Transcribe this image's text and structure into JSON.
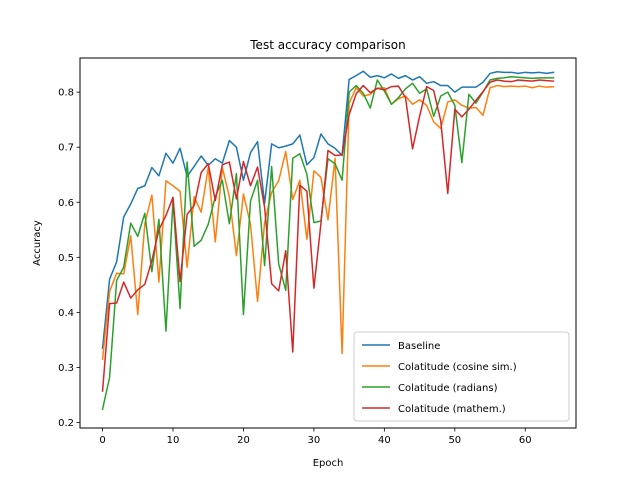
{
  "chart_data": {
    "type": "line",
    "title": "Test accuracy comparison",
    "xlabel": "Epoch",
    "ylabel": "Accuracy",
    "xlim": [
      -3.2,
      67.2
    ],
    "ylim": [
      0.19,
      0.862
    ],
    "xticks": [
      0,
      10,
      20,
      30,
      40,
      50,
      60
    ],
    "yticks": [
      0.2,
      0.3,
      0.4,
      0.5,
      0.6,
      0.7,
      0.8
    ],
    "ytick_labels": [
      "0.2",
      "0.3",
      "0.4",
      "0.5",
      "0.6",
      "0.7",
      "0.8"
    ],
    "grid": false,
    "legend_position": "lower-right",
    "x": [
      0,
      1,
      2,
      3,
      4,
      5,
      6,
      7,
      8,
      9,
      10,
      11,
      12,
      13,
      14,
      15,
      16,
      17,
      18,
      19,
      20,
      21,
      22,
      23,
      24,
      25,
      26,
      27,
      28,
      29,
      30,
      31,
      32,
      33,
      34,
      35,
      36,
      37,
      38,
      39,
      40,
      41,
      42,
      43,
      44,
      45,
      46,
      47,
      48,
      49,
      50,
      51,
      52,
      53,
      54,
      55,
      56,
      57,
      58,
      59,
      60,
      61,
      62,
      63,
      64
    ],
    "series": [
      {
        "name": "Baseline",
        "color": "#1f77b4",
        "values": [
          0.335,
          0.46,
          0.492,
          0.573,
          0.597,
          0.625,
          0.63,
          0.663,
          0.648,
          0.689,
          0.671,
          0.698,
          0.647,
          0.665,
          0.684,
          0.667,
          0.679,
          0.671,
          0.712,
          0.7,
          0.64,
          0.69,
          0.71,
          0.598,
          0.706,
          0.699,
          0.702,
          0.706,
          0.722,
          0.668,
          0.681,
          0.724,
          0.706,
          0.698,
          0.685,
          0.823,
          0.83,
          0.838,
          0.827,
          0.83,
          0.826,
          0.833,
          0.825,
          0.83,
          0.822,
          0.828,
          0.816,
          0.819,
          0.812,
          0.812,
          0.8,
          0.809,
          0.809,
          0.809,
          0.818,
          0.834,
          0.837,
          0.836,
          0.836,
          0.834,
          0.836,
          0.835,
          0.836,
          0.834,
          0.836
        ]
      },
      {
        "name": "Colatitude (cosine sim.)",
        "color": "#ff7f0e",
        "values": [
          0.315,
          0.438,
          0.471,
          0.47,
          0.539,
          0.396,
          0.561,
          0.613,
          0.455,
          0.639,
          0.63,
          0.62,
          0.482,
          0.61,
          0.582,
          0.663,
          0.528,
          0.663,
          0.61,
          0.503,
          0.615,
          0.56,
          0.42,
          0.563,
          0.618,
          0.639,
          0.692,
          0.605,
          0.64,
          0.533,
          0.657,
          0.645,
          0.568,
          0.68,
          0.325,
          0.78,
          0.808,
          0.793,
          0.796,
          0.807,
          0.808,
          0.778,
          0.788,
          0.793,
          0.778,
          0.786,
          0.776,
          0.746,
          0.734,
          0.782,
          0.786,
          0.776,
          0.771,
          0.772,
          0.758,
          0.808,
          0.812,
          0.81,
          0.811,
          0.81,
          0.811,
          0.808,
          0.811,
          0.809,
          0.81
        ]
      },
      {
        "name": "Colatitude (radians)",
        "color": "#2ca02c",
        "values": [
          0.224,
          0.282,
          0.458,
          0.482,
          0.562,
          0.538,
          0.58,
          0.474,
          0.569,
          0.366,
          0.603,
          0.407,
          0.673,
          0.52,
          0.531,
          0.56,
          0.61,
          0.64,
          0.561,
          0.652,
          0.396,
          0.602,
          0.64,
          0.485,
          0.665,
          0.488,
          0.44,
          0.68,
          0.688,
          0.651,
          0.563,
          0.566,
          0.679,
          0.67,
          0.64,
          0.8,
          0.812,
          0.798,
          0.771,
          0.822,
          0.802,
          0.778,
          0.79,
          0.806,
          0.816,
          0.798,
          0.806,
          0.756,
          0.793,
          0.8,
          0.776,
          0.672,
          0.796,
          0.78,
          0.8,
          0.822,
          0.825,
          0.826,
          0.828,
          0.827,
          0.826,
          0.825,
          0.826,
          0.826,
          0.826
        ]
      },
      {
        "name": "Colatitude (mathem.)",
        "color": "#d62728",
        "values": [
          0.257,
          0.416,
          0.417,
          0.455,
          0.426,
          0.441,
          0.451,
          0.494,
          0.55,
          0.576,
          0.609,
          0.456,
          0.578,
          0.594,
          0.654,
          0.67,
          0.603,
          0.668,
          0.673,
          0.606,
          0.674,
          0.63,
          0.664,
          0.591,
          0.452,
          0.439,
          0.512,
          0.328,
          0.631,
          0.62,
          0.444,
          0.562,
          0.694,
          0.685,
          0.686,
          0.759,
          0.797,
          0.812,
          0.799,
          0.807,
          0.804,
          0.81,
          0.811,
          0.79,
          0.697,
          0.756,
          0.81,
          0.803,
          0.748,
          0.616,
          0.769,
          0.755,
          0.769,
          0.785,
          0.801,
          0.818,
          0.822,
          0.82,
          0.819,
          0.822,
          0.821,
          0.82,
          0.822,
          0.821,
          0.82
        ]
      }
    ]
  }
}
